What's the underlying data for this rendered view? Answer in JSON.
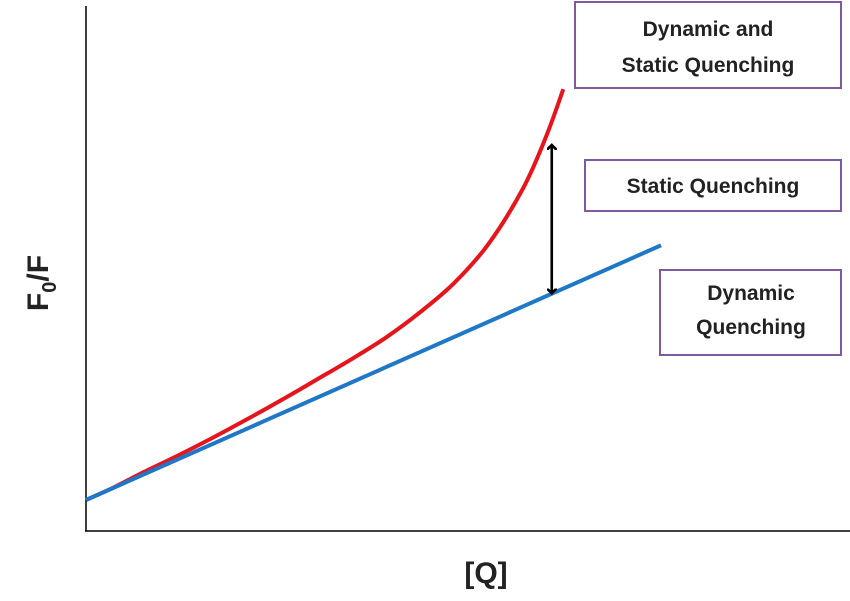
{
  "chart_data": {
    "type": "line",
    "xlabel": "[Q]",
    "ylabel": "F0/F",
    "ylabel_main": "F",
    "ylabel_sub": "0",
    "ylabel_tail": "/F",
    "series": [
      {
        "color": "#e8141b",
        "x": [
          0,
          0.05,
          0.1,
          0.16,
          0.22,
          0.28,
          0.34,
          0.4,
          0.46,
          0.52,
          0.58,
          0.64,
          0.7,
          0.76,
          0.8,
          0.83
        ],
        "y": [
          0.0,
          0.055,
          0.117,
          0.187,
          0.261,
          0.339,
          0.42,
          0.504,
          0.589,
          0.68,
          0.787,
          0.911,
          1.076,
          1.309,
          1.526,
          1.726
        ]
      },
      {
        "color": "#1f77c8",
        "x": [
          0,
          1.0
        ],
        "y": [
          0,
          1.07
        ]
      }
    ],
    "annotations": [
      {
        "lines": [
          "Dynamic and",
          "Static Quenching"
        ]
      },
      {
        "lines": [
          "Static Quenching"
        ]
      },
      {
        "lines": [
          "Dynamic",
          "Quenching"
        ]
      }
    ],
    "arrow": {
      "x": 0.81,
      "y_from": 0.86,
      "y_to": 1.5,
      "style": "double-headed"
    },
    "box_border_color": "#7f5aa2",
    "grid": false,
    "ticks": false
  }
}
